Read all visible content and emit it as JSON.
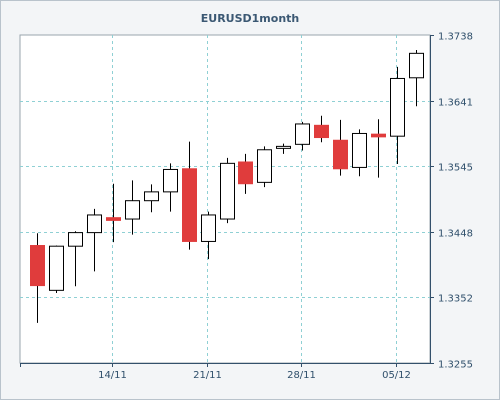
{
  "chart_data": {
    "type": "candlestick",
    "title": "EURUSD1month",
    "xlabel": "",
    "ylabel": "",
    "ylim": [
      1.3255,
      1.3738
    ],
    "y_ticks": [
      "1.3738",
      "1.3641",
      "1.3545",
      "1.3448",
      "1.3352",
      "1.3255"
    ],
    "x_tick_labels": [
      "14/11",
      "21/11",
      "28/11",
      "05/12"
    ],
    "grid": true,
    "colors": {
      "up": "#ffffff",
      "down": "#e03c3c",
      "outline": "#000000",
      "grid": "#8fd0d4"
    },
    "candles": [
      {
        "o": 1.3428,
        "h": 1.3446,
        "l": 1.3314,
        "c": 1.3369
      },
      {
        "o": 1.3362,
        "h": 1.3428,
        "l": 1.3358,
        "c": 1.3427
      },
      {
        "o": 1.3427,
        "h": 1.3449,
        "l": 1.3368,
        "c": 1.3447
      },
      {
        "o": 1.3447,
        "h": 1.3482,
        "l": 1.339,
        "c": 1.3473
      },
      {
        "o": 1.3469,
        "h": 1.3519,
        "l": 1.3433,
        "c": 1.3465
      },
      {
        "o": 1.3467,
        "h": 1.3524,
        "l": 1.3444,
        "c": 1.3494
      },
      {
        "o": 1.3494,
        "h": 1.3518,
        "l": 1.3477,
        "c": 1.3507
      },
      {
        "o": 1.3507,
        "h": 1.3549,
        "l": 1.3478,
        "c": 1.354
      },
      {
        "o": 1.3541,
        "h": 1.3581,
        "l": 1.3422,
        "c": 1.3434
      },
      {
        "o": 1.3434,
        "h": 1.3478,
        "l": 1.3408,
        "c": 1.3473
      },
      {
        "o": 1.3467,
        "h": 1.3557,
        "l": 1.3461,
        "c": 1.3549
      },
      {
        "o": 1.3551,
        "h": 1.3563,
        "l": 1.3504,
        "c": 1.3519
      },
      {
        "o": 1.3521,
        "h": 1.3574,
        "l": 1.3514,
        "c": 1.3569
      },
      {
        "o": 1.3572,
        "h": 1.3578,
        "l": 1.3563,
        "c": 1.3574
      },
      {
        "o": 1.3577,
        "h": 1.361,
        "l": 1.3568,
        "c": 1.3607
      },
      {
        "o": 1.3605,
        "h": 1.3619,
        "l": 1.358,
        "c": 1.3587
      },
      {
        "o": 1.3583,
        "h": 1.3613,
        "l": 1.3531,
        "c": 1.3541
      },
      {
        "o": 1.3543,
        "h": 1.3599,
        "l": 1.353,
        "c": 1.3593
      },
      {
        "o": 1.3592,
        "h": 1.3614,
        "l": 1.3528,
        "c": 1.3588
      },
      {
        "o": 1.3589,
        "h": 1.3691,
        "l": 1.3548,
        "c": 1.3674
      },
      {
        "o": 1.3675,
        "h": 1.3716,
        "l": 1.3633,
        "c": 1.3711
      }
    ]
  }
}
